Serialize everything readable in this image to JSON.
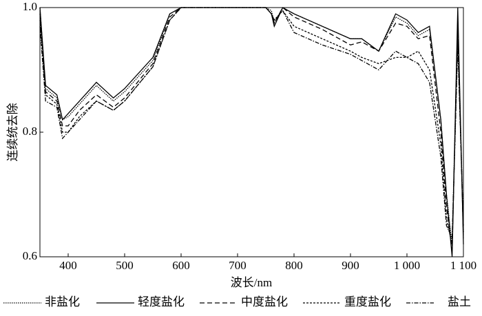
{
  "chart_data": {
    "type": "line",
    "ylabel": "连续统去除",
    "xlabel": "波长/nm",
    "xlim": [
      350,
      1100
    ],
    "ylim": [
      0.6,
      1.0
    ],
    "xticks": [
      400,
      500,
      600,
      700,
      800,
      900,
      {
        "value": 1000,
        "label": "1 000"
      },
      {
        "value": 1100,
        "label": "1 100"
      }
    ],
    "yticks": [
      0.6,
      0.8,
      {
        "value": 1.0,
        "label": "1.0"
      }
    ],
    "x": [
      350,
      360,
      380,
      390,
      400,
      420,
      450,
      480,
      500,
      550,
      580,
      600,
      650,
      700,
      750,
      760,
      765,
      780,
      800,
      850,
      900,
      920,
      950,
      980,
      1000,
      1020,
      1040,
      1060,
      1070,
      1080,
      1090,
      1100
    ],
    "series": [
      {
        "name": "非盐化",
        "color": "#000000",
        "dash": "1.5 1.5",
        "values": [
          1.0,
          0.87,
          0.855,
          0.82,
          0.825,
          0.845,
          0.875,
          0.85,
          0.865,
          0.915,
          0.99,
          1.0,
          1.0,
          1.0,
          1.0,
          0.995,
          0.975,
          1.0,
          0.99,
          0.97,
          0.95,
          0.95,
          0.93,
          0.985,
          0.975,
          0.955,
          0.965,
          0.82,
          0.7,
          0.62,
          0.98,
          0.64
        ]
      },
      {
        "name": "轻度盐化",
        "color": "#000000",
        "dash": "none",
        "values": [
          1.0,
          0.875,
          0.86,
          0.82,
          0.83,
          0.85,
          0.88,
          0.855,
          0.87,
          0.92,
          0.99,
          1.0,
          1.0,
          1.0,
          1.0,
          0.99,
          0.97,
          1.0,
          0.99,
          0.97,
          0.95,
          0.95,
          0.93,
          0.99,
          0.98,
          0.96,
          0.97,
          0.82,
          0.7,
          0.6,
          1.0,
          0.62
        ]
      },
      {
        "name": "中度盐化",
        "color": "#000000",
        "dash": "7 4",
        "values": [
          0.99,
          0.865,
          0.85,
          0.81,
          0.81,
          0.835,
          0.86,
          0.84,
          0.855,
          0.91,
          0.985,
          1.0,
          1.0,
          1.0,
          1.0,
          0.99,
          0.975,
          1.0,
          0.985,
          0.965,
          0.94,
          0.945,
          0.93,
          0.975,
          0.97,
          0.95,
          0.955,
          0.8,
          0.68,
          0.61,
          0.97,
          0.63
        ]
      },
      {
        "name": "重度盐化",
        "color": "#000000",
        "dash": "3 2",
        "values": [
          0.98,
          0.86,
          0.845,
          0.8,
          0.8,
          0.825,
          0.85,
          0.835,
          0.85,
          0.905,
          0.98,
          1.0,
          1.0,
          1.0,
          1.0,
          0.99,
          0.98,
          0.995,
          0.97,
          0.95,
          0.93,
          0.92,
          0.91,
          0.92,
          0.92,
          0.93,
          0.9,
          0.78,
          0.66,
          0.62,
          0.95,
          0.64
        ]
      },
      {
        "name": "盐土",
        "color": "#000000",
        "dash": "6 2 1.5 2",
        "values": [
          0.97,
          0.85,
          0.84,
          0.79,
          0.8,
          0.82,
          0.85,
          0.835,
          0.85,
          0.905,
          0.98,
          1.0,
          1.0,
          1.0,
          1.0,
          0.99,
          0.98,
          0.995,
          0.96,
          0.94,
          0.925,
          0.915,
          0.9,
          0.93,
          0.92,
          0.91,
          0.88,
          0.76,
          0.65,
          0.63,
          0.94,
          0.65
        ]
      }
    ]
  }
}
